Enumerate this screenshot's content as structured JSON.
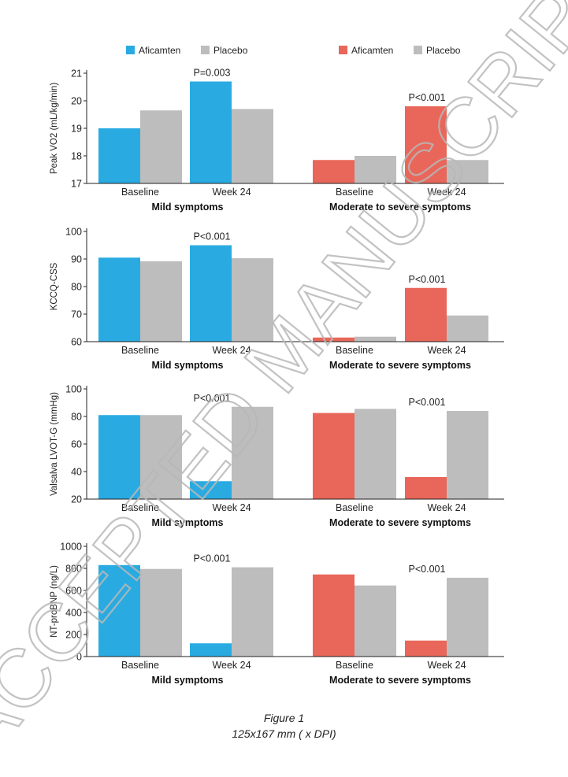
{
  "colors": {
    "aficamten_mild": "#29ABE2",
    "aficamten_moderate": "#E8675A",
    "placebo": "#BDBDBD",
    "axis": "#222222"
  },
  "legend": [
    {
      "group": "mild",
      "items": [
        {
          "label": "Aficamten",
          "color": "#29ABE2"
        },
        {
          "label": "Placebo",
          "color": "#BDBDBD"
        }
      ]
    },
    {
      "group": "moderate",
      "items": [
        {
          "label": "Aficamten",
          "color": "#E8675A"
        },
        {
          "label": "Placebo",
          "color": "#BDBDBD"
        }
      ]
    }
  ],
  "groups": {
    "mild": "Mild symptoms",
    "moderate": "Moderate to severe symptoms"
  },
  "categories": [
    "Baseline",
    "Week 24"
  ],
  "chart_data": [
    {
      "type": "bar",
      "ylabel": "Peak VO2 (mL/kg/min)",
      "ylim": [
        17,
        21
      ],
      "yticks": [
        17,
        18,
        19,
        20,
        21
      ],
      "mild": {
        "aficamten": [
          19.0,
          20.7
        ],
        "placebo": [
          19.65,
          19.7
        ]
      },
      "moderate": {
        "aficamten": [
          17.85,
          19.8
        ],
        "placebo": [
          18.0,
          17.85
        ]
      },
      "annotations": {
        "mild": "P=0.003",
        "moderate": "P<0.001"
      }
    },
    {
      "type": "bar",
      "ylabel": "KCCQ-CSS",
      "ylim": [
        60,
        100
      ],
      "yticks": [
        60,
        70,
        80,
        90,
        100
      ],
      "mild": {
        "aficamten": [
          90.5,
          95.0
        ],
        "placebo": [
          89.2,
          90.3
        ]
      },
      "moderate": {
        "aficamten": [
          61.5,
          79.5
        ],
        "placebo": [
          61.8,
          69.5
        ]
      },
      "annotations": {
        "mild": "P<0.001",
        "moderate": "P<0.001"
      }
    },
    {
      "type": "bar",
      "ylabel": "Valsalva LVOT-G (mmHg)",
      "ylim": [
        20,
        100
      ],
      "yticks": [
        20,
        40,
        60,
        80,
        100
      ],
      "mild": {
        "aficamten": [
          81,
          33
        ],
        "placebo": [
          81,
          87
        ]
      },
      "moderate": {
        "aficamten": [
          82.5,
          36
        ],
        "placebo": [
          85.5,
          84
        ]
      },
      "annotations": {
        "mild": "P<0.001",
        "moderate": "P<0.001"
      }
    },
    {
      "type": "bar",
      "ylabel": "NT-proBNP (ng/L)",
      "ylim": [
        0,
        1000
      ],
      "yticks": [
        0,
        200,
        400,
        600,
        800,
        1000
      ],
      "mild": {
        "aficamten": [
          830,
          120
        ],
        "placebo": [
          795,
          810
        ]
      },
      "moderate": {
        "aficamten": [
          745,
          145
        ],
        "placebo": [
          645,
          715
        ]
      },
      "annotations": {
        "mild": "P<0.001",
        "moderate": "P<0.001"
      }
    }
  ],
  "caption": {
    "title": "Figure 1",
    "subtitle": "125x167 mm ( x  DPI)"
  },
  "watermark": "ACCEPTED MANUSCRIPT"
}
